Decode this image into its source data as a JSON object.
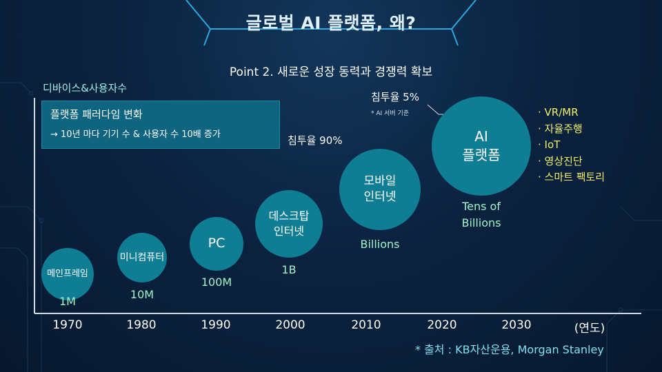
{
  "title": "글로벌 AI 플랫폼, 왜?",
  "subtitle": "Point 2. 새로운 성장 동력과 경쟁력 확보",
  "y_axis_label": "디바이스&사용자수",
  "callout": {
    "title": "플랫폼 패러다임 변화",
    "text": "→ 10년 마다 기기 수 & 사용자 수 10배 증가"
  },
  "stages": [
    {
      "name": "메인프레임",
      "value": "1M"
    },
    {
      "name": "미니컴퓨터",
      "value": "10M"
    },
    {
      "name": "PC",
      "value": "100M"
    },
    {
      "name_lines": [
        "데스크탑",
        "인터넷"
      ],
      "value": "1B"
    },
    {
      "name_lines": [
        "모바일",
        "인터넷"
      ],
      "value": "Billions"
    },
    {
      "name_lines": [
        "AI",
        "플랫폼"
      ],
      "value_lines": [
        "Tens of",
        "Billions"
      ]
    }
  ],
  "penetration": {
    "mobile": "침투율 90%",
    "ai": "침투율 5%",
    "ai_note": "* AI 서버 기준"
  },
  "years": [
    "1970",
    "1980",
    "1990",
    "2000",
    "2010",
    "2020",
    "2030",
    "(연도)"
  ],
  "applications": [
    "· VR/MR",
    "· 자율주행",
    "· IoT",
    "· 영상진단",
    "· 스마트 팩토리"
  ],
  "source": "* 출처 : KB자산운용, Morgan Stanley",
  "colors": {
    "circle": "#0f7d93",
    "value_text": "#9ff5c8",
    "app_text": "#f1ef6a",
    "accent_line": "#2aa9e0"
  }
}
